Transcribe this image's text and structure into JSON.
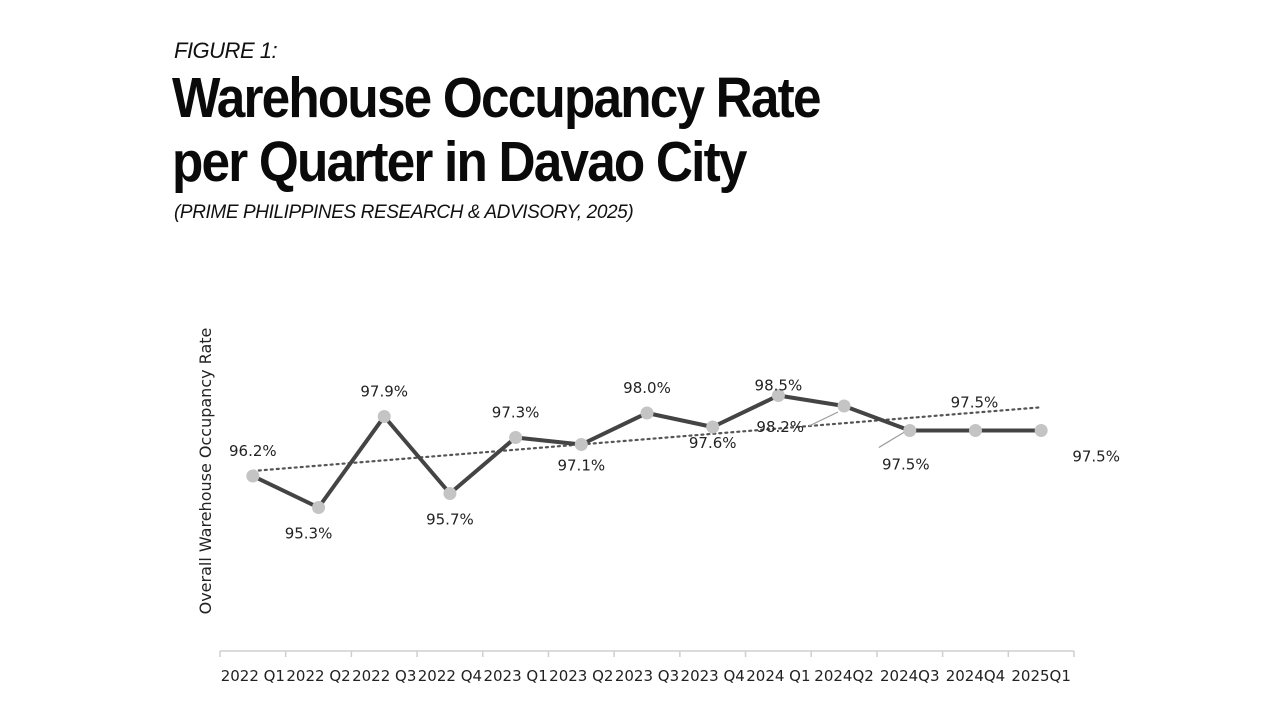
{
  "header": {
    "figure_label": "FIGURE 1:",
    "title_line1": "Warehouse Occupancy Rate",
    "title_line2": "per Quarter in Davao City",
    "subtitle": "(PRIME PHILIPPINES RESEARCH & ADVISORY, 2025)"
  },
  "colors": {
    "line": "#444444",
    "marker": "#c4c4c4",
    "trendline": "#555555",
    "axis": "#cfcfcf",
    "text": "#222222"
  },
  "chart_data": {
    "type": "line",
    "title": "Warehouse Occupancy Rate per Quarter in Davao City",
    "xlabel": "",
    "ylabel": "Overall Warehouse Occupancy Rate",
    "categories": [
      "2022 Q1",
      "2022 Q2",
      "2022 Q3",
      "2022 Q4",
      "2023 Q1",
      "2023 Q2",
      "2023 Q3",
      "2023 Q4",
      "2024 Q1",
      "2024Q2",
      "2024Q3",
      "2024Q4",
      "2025Q1"
    ],
    "series": [
      {
        "values": [
          96.2,
          95.3,
          97.9,
          95.7,
          97.3,
          97.1,
          98.0,
          97.6,
          98.5,
          98.2,
          97.5,
          97.5,
          97.5
        ],
        "labels": [
          "96.2%",
          "95.3%",
          "97.9%",
          "95.7%",
          "97.3%",
          "97.1%",
          "98.0%",
          "97.6%",
          "98.5%",
          "98.2%",
          "97.5%",
          "97.5%",
          "97.5%"
        ]
      }
    ],
    "trendline": {
      "type": "linear",
      "style": "dotted"
    },
    "ylim": [
      91.2,
      98.8
    ],
    "grid": false,
    "legend": "none"
  }
}
